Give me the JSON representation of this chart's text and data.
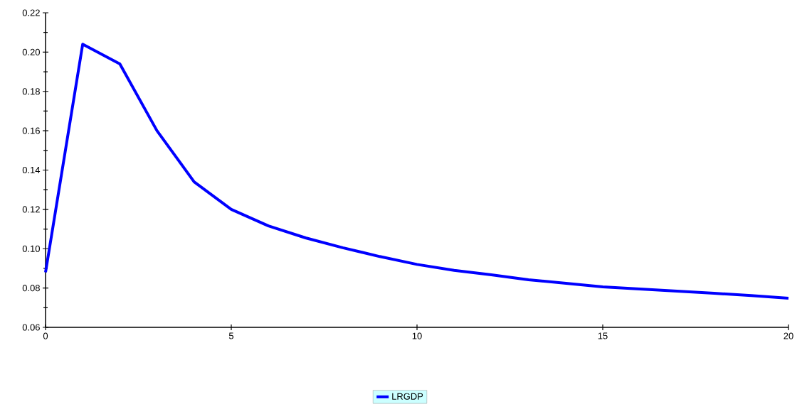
{
  "chart_data": {
    "type": "line",
    "x": [
      0,
      1,
      2,
      3,
      4,
      5,
      6,
      7,
      8,
      9,
      10,
      11,
      12,
      13,
      14,
      15,
      16,
      17,
      18,
      19,
      20
    ],
    "series": [
      {
        "name": "LRGDP",
        "color": "#0000ff",
        "values": [
          0.088,
          0.204,
          0.194,
          0.16,
          0.134,
          0.12,
          0.1116,
          0.1055,
          0.1005,
          0.096,
          0.092,
          0.089,
          0.0867,
          0.0842,
          0.0824,
          0.0806,
          0.0795,
          0.0784,
          0.0773,
          0.0762,
          0.0748
        ]
      }
    ],
    "xlim": [
      0,
      20
    ],
    "xticks": [
      0,
      5,
      10,
      15,
      20
    ],
    "ylim": [
      0.06,
      0.22
    ],
    "yticks": [
      0.06,
      0.08,
      {
        "value": 0.1,
        "label": "0.10"
      },
      0.12,
      0.14,
      0.16,
      0.18,
      {
        "value": 0.2,
        "label": "0.20"
      },
      0.22
    ],
    "legend": "bottom",
    "grid": false,
    "marker": "none",
    "line_style": "solid"
  }
}
